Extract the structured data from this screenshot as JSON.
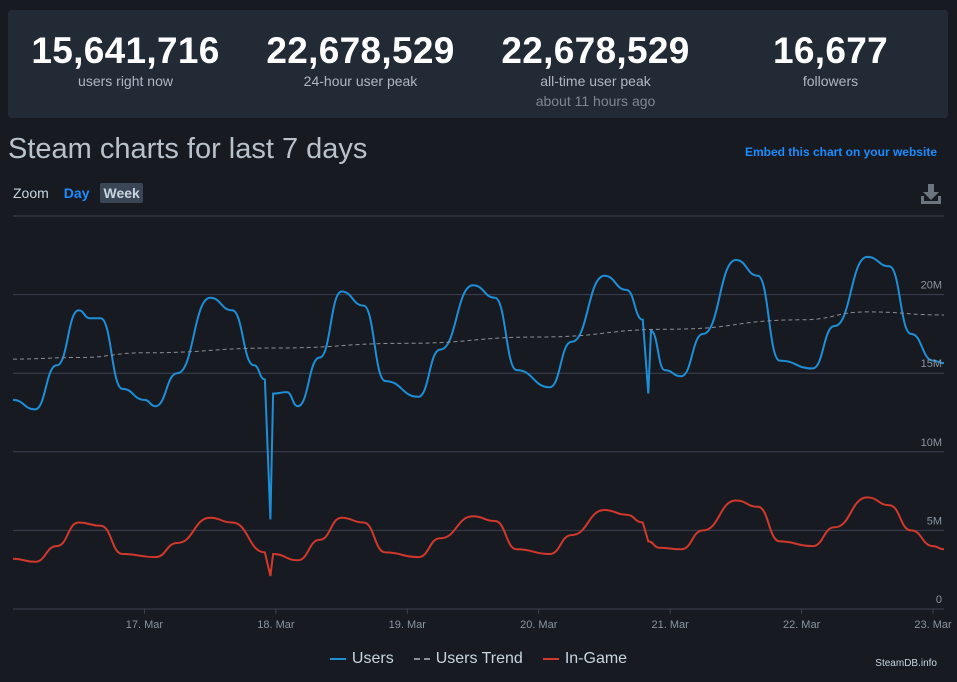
{
  "stats": [
    {
      "value": "15,641,716",
      "label": "users right now",
      "sub": ""
    },
    {
      "value": "22,678,529",
      "label": "24-hour user peak",
      "sub": ""
    },
    {
      "value": "22,678,529",
      "label": "all-time user peak",
      "sub": "about 11 hours ago"
    },
    {
      "value": "16,677",
      "label": "followers",
      "sub": ""
    }
  ],
  "header": {
    "title": "Steam charts for last 7 days",
    "embed_link": "Embed this chart on your website"
  },
  "zoom": {
    "label": "Zoom",
    "day": "Day",
    "week": "Week"
  },
  "icons": {
    "download": "download-icon"
  },
  "credit": "SteamDB.info",
  "colors": {
    "users": "#1e8fd6",
    "trend": "#8a8f96",
    "ingame": "#d0392b",
    "grid": "#3b4250",
    "accent": "#1a8cff"
  },
  "chart_data": {
    "type": "line",
    "title": "",
    "xlabel": "",
    "ylabel": "",
    "x_ticks": [
      "17. Mar",
      "18. Mar",
      "19. Mar",
      "20. Mar",
      "21. Mar",
      "22. Mar",
      "23. Mar"
    ],
    "y_ticks": [
      "0",
      "5M",
      "10M",
      "15M",
      "20M"
    ],
    "ylim": [
      0,
      25000000
    ],
    "xlim": [
      "2023-03-16 00:00",
      "2023-03-23 02:00"
    ],
    "grid": true,
    "legend_position": "bottom",
    "series": [
      {
        "name": "Users",
        "color": "#1e8fd6",
        "points": [
          [
            "2023-03-16 00:00",
            13300000
          ],
          [
            "2023-03-16 04:00",
            12700000
          ],
          [
            "2023-03-16 08:00",
            15500000
          ],
          [
            "2023-03-16 12:00",
            19000000
          ],
          [
            "2023-03-16 14:00",
            18500000
          ],
          [
            "2023-03-16 16:00",
            18500000
          ],
          [
            "2023-03-16 20:00",
            14000000
          ],
          [
            "2023-03-17 00:00",
            13300000
          ],
          [
            "2023-03-17 02:00",
            12900000
          ],
          [
            "2023-03-17 06:00",
            15000000
          ],
          [
            "2023-03-17 12:00",
            19800000
          ],
          [
            "2023-03-17 16:00",
            19000000
          ],
          [
            "2023-03-17 20:00",
            15500000
          ],
          [
            "2023-03-17 22:00",
            14600000
          ],
          [
            "2023-03-17 23:00",
            5700000
          ],
          [
            "2023-03-17 23:30",
            13700000
          ],
          [
            "2023-03-18 02:00",
            13800000
          ],
          [
            "2023-03-18 04:00",
            12900000
          ],
          [
            "2023-03-18 08:00",
            16000000
          ],
          [
            "2023-03-18 12:00",
            20200000
          ],
          [
            "2023-03-18 16:00",
            19300000
          ],
          [
            "2023-03-18 20:00",
            14500000
          ],
          [
            "2023-03-19 02:00",
            13500000
          ],
          [
            "2023-03-19 06:00",
            16500000
          ],
          [
            "2023-03-19 12:00",
            20600000
          ],
          [
            "2023-03-19 16:00",
            19800000
          ],
          [
            "2023-03-19 20:00",
            15200000
          ],
          [
            "2023-03-20 02:00",
            14100000
          ],
          [
            "2023-03-20 06:00",
            17000000
          ],
          [
            "2023-03-20 12:00",
            21200000
          ],
          [
            "2023-03-20 16:00",
            20300000
          ],
          [
            "2023-03-20 19:00",
            18400000
          ],
          [
            "2023-03-20 20:00",
            13700000
          ],
          [
            "2023-03-20 20:30",
            17700000
          ],
          [
            "2023-03-20 23:00",
            15200000
          ],
          [
            "2023-03-21 02:00",
            14800000
          ],
          [
            "2023-03-21 06:00",
            17500000
          ],
          [
            "2023-03-21 12:00",
            22200000
          ],
          [
            "2023-03-21 16:00",
            21200000
          ],
          [
            "2023-03-21 20:00",
            15800000
          ],
          [
            "2023-03-22 02:00",
            15300000
          ],
          [
            "2023-03-22 06:00",
            18000000
          ],
          [
            "2023-03-22 12:00",
            22400000
          ],
          [
            "2023-03-22 16:00",
            21800000
          ],
          [
            "2023-03-22 20:00",
            17500000
          ],
          [
            "2023-03-23 00:00",
            15800000
          ],
          [
            "2023-03-23 02:00",
            15640000
          ]
        ]
      },
      {
        "name": "Users Trend",
        "color": "#8a8f96",
        "dashed": true,
        "points": [
          [
            "2023-03-16 00:00",
            15900000
          ],
          [
            "2023-03-16 12:00",
            16000000
          ],
          [
            "2023-03-17 00:00",
            16300000
          ],
          [
            "2023-03-18 00:00",
            16600000
          ],
          [
            "2023-03-19 00:00",
            16900000
          ],
          [
            "2023-03-20 00:00",
            17300000
          ],
          [
            "2023-03-21 00:00",
            17800000
          ],
          [
            "2023-03-22 00:00",
            18400000
          ],
          [
            "2023-03-22 12:00",
            18900000
          ],
          [
            "2023-03-23 02:00",
            18700000
          ]
        ]
      },
      {
        "name": "In-Game",
        "color": "#d0392b",
        "points": [
          [
            "2023-03-16 00:00",
            3200000
          ],
          [
            "2023-03-16 04:00",
            3000000
          ],
          [
            "2023-03-16 08:00",
            4000000
          ],
          [
            "2023-03-16 12:00",
            5500000
          ],
          [
            "2023-03-16 16:00",
            5300000
          ],
          [
            "2023-03-16 20:00",
            3500000
          ],
          [
            "2023-03-17 02:00",
            3300000
          ],
          [
            "2023-03-17 06:00",
            4200000
          ],
          [
            "2023-03-17 12:00",
            5800000
          ],
          [
            "2023-03-17 16:00",
            5500000
          ],
          [
            "2023-03-17 22:00",
            3600000
          ],
          [
            "2023-03-17 23:00",
            2100000
          ],
          [
            "2023-03-17 23:30",
            3500000
          ],
          [
            "2023-03-18 04:00",
            3100000
          ],
          [
            "2023-03-18 08:00",
            4400000
          ],
          [
            "2023-03-18 12:00",
            5800000
          ],
          [
            "2023-03-18 16:00",
            5500000
          ],
          [
            "2023-03-18 20:00",
            3600000
          ],
          [
            "2023-03-19 02:00",
            3300000
          ],
          [
            "2023-03-19 06:00",
            4500000
          ],
          [
            "2023-03-19 12:00",
            5900000
          ],
          [
            "2023-03-19 16:00",
            5600000
          ],
          [
            "2023-03-19 20:00",
            3800000
          ],
          [
            "2023-03-20 02:00",
            3500000
          ],
          [
            "2023-03-20 06:00",
            4700000
          ],
          [
            "2023-03-20 12:00",
            6300000
          ],
          [
            "2023-03-20 16:00",
            6000000
          ],
          [
            "2023-03-20 19:00",
            5500000
          ],
          [
            "2023-03-20 20:00",
            4300000
          ],
          [
            "2023-03-20 22:00",
            3900000
          ],
          [
            "2023-03-21 02:00",
            3800000
          ],
          [
            "2023-03-21 06:00",
            5000000
          ],
          [
            "2023-03-21 12:00",
            6900000
          ],
          [
            "2023-03-21 16:00",
            6500000
          ],
          [
            "2023-03-21 20:00",
            4300000
          ],
          [
            "2023-03-22 02:00",
            4000000
          ],
          [
            "2023-03-22 06:00",
            5200000
          ],
          [
            "2023-03-22 12:00",
            7100000
          ],
          [
            "2023-03-22 16:00",
            6600000
          ],
          [
            "2023-03-22 20:00",
            5000000
          ],
          [
            "2023-03-23 00:00",
            4000000
          ],
          [
            "2023-03-23 02:00",
            3800000
          ]
        ]
      }
    ]
  }
}
